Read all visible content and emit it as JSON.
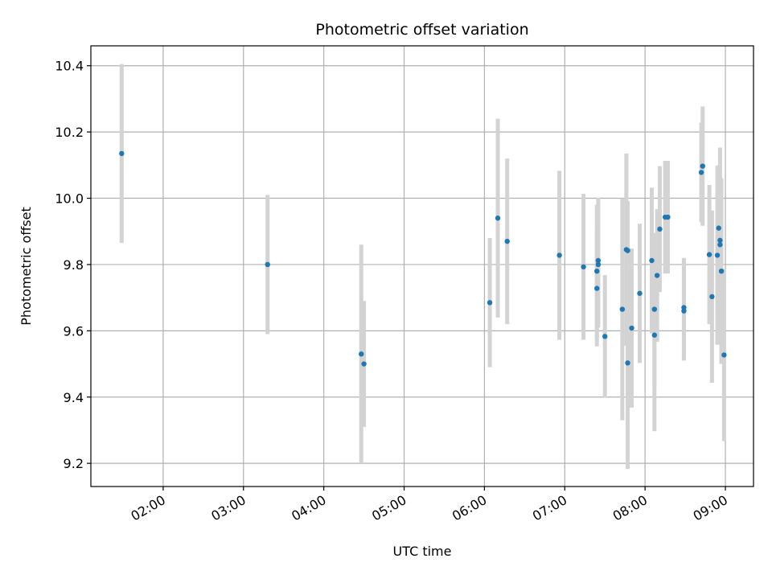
{
  "chart_data": {
    "type": "scatter",
    "title": "Photometric offset variation",
    "xlabel": "UTC time",
    "ylabel": "Photometric offset",
    "x_unit": "UTC time (HH:MM)",
    "xlim": [
      "01:06",
      "09:21"
    ],
    "ylim": [
      9.13,
      10.46
    ],
    "grid": true,
    "xticks": [
      "02:00",
      "03:00",
      "04:00",
      "05:00",
      "06:00",
      "07:00",
      "08:00",
      "09:00"
    ],
    "yticks": [
      "9.2",
      "9.4",
      "9.6",
      "9.8",
      "10.0",
      "10.2",
      "10.4"
    ],
    "xtick_rotation": 30,
    "colors": {
      "point": "#1f77b4",
      "errorbar": "#d3d3d3",
      "grid": "#b0b0b0"
    },
    "points": [
      {
        "t": "01:29",
        "y": 10.135,
        "err": 0.27
      },
      {
        "t": "03:18",
        "y": 9.8,
        "err": 0.21
      },
      {
        "t": "04:28",
        "y": 9.53,
        "err": 0.33
      },
      {
        "t": "04:30",
        "y": 9.5,
        "err": 0.19
      },
      {
        "t": "06:04",
        "y": 9.685,
        "err": 0.195
      },
      {
        "t": "06:10",
        "y": 9.94,
        "err": 0.3
      },
      {
        "t": "06:17",
        "y": 9.87,
        "err": 0.25
      },
      {
        "t": "06:56",
        "y": 9.828,
        "err": 0.255
      },
      {
        "t": "07:14",
        "y": 9.793,
        "err": 0.22
      },
      {
        "t": "07:24",
        "y": 9.728,
        "err": 0.175
      },
      {
        "t": "07:24",
        "y": 9.78,
        "err": 0.2
      },
      {
        "t": "07:25",
        "y": 9.8,
        "err": 0.19
      },
      {
        "t": "07:25",
        "y": 9.812,
        "err": 0.19
      },
      {
        "t": "07:30",
        "y": 9.583,
        "err": 0.185
      },
      {
        "t": "07:43",
        "y": 9.665,
        "err": 0.335
      },
      {
        "t": "07:46",
        "y": 9.845,
        "err": 0.29
      },
      {
        "t": "07:47",
        "y": 9.842,
        "err": 0.15
      },
      {
        "t": "07:47",
        "y": 9.503,
        "err": 0.32
      },
      {
        "t": "07:50",
        "y": 9.608,
        "err": 0.24
      },
      {
        "t": "07:56",
        "y": 9.713,
        "err": 0.21
      },
      {
        "t": "08:05",
        "y": 9.812,
        "err": 0.22
      },
      {
        "t": "08:07",
        "y": 9.665,
        "err": 0.23
      },
      {
        "t": "08:07",
        "y": 9.587,
        "err": 0.29
      },
      {
        "t": "08:09",
        "y": 9.767,
        "err": 0.2
      },
      {
        "t": "08:11",
        "y": 9.907,
        "err": 0.19
      },
      {
        "t": "08:15",
        "y": 9.943,
        "err": 0.17
      },
      {
        "t": "08:17",
        "y": 9.943,
        "err": 0.17
      },
      {
        "t": "08:29",
        "y": 9.67,
        "err": 0.15
      },
      {
        "t": "08:29",
        "y": 9.66,
        "err": 0.15
      },
      {
        "t": "08:42",
        "y": 10.078,
        "err": 0.15
      },
      {
        "t": "08:43",
        "y": 10.097,
        "err": 0.18
      },
      {
        "t": "08:48",
        "y": 9.83,
        "err": 0.21
      },
      {
        "t": "08:50",
        "y": 9.703,
        "err": 0.26
      },
      {
        "t": "08:54",
        "y": 9.828,
        "err": 0.27
      },
      {
        "t": "08:55",
        "y": 9.91,
        "err": 0.19
      },
      {
        "t": "08:56",
        "y": 9.873,
        "err": 0.28
      },
      {
        "t": "08:56",
        "y": 9.86,
        "err": 0.21
      },
      {
        "t": "08:57",
        "y": 9.78,
        "err": 0.28
      },
      {
        "t": "08:59",
        "y": 9.527,
        "err": 0.26
      }
    ]
  }
}
